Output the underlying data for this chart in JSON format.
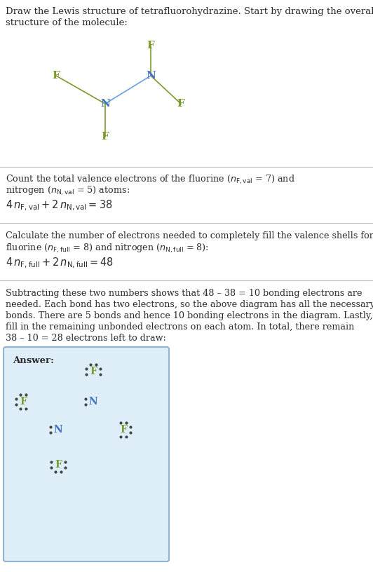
{
  "title_text1": "Draw the Lewis structure of tetrafluorohydrazine. Start by drawing the overall",
  "title_text2": "structure of the molecule:",
  "N_color": "#4472c4",
  "F_color": "#7a9a2e",
  "bond_color_NF": "#7a9a2e",
  "bond_color_NN": "#6ca0dc",
  "answer_bg": "#deeef8",
  "answer_border": "#92b4d0",
  "text_color": "#2b2b2b",
  "divider_color": "#bbbbbb",
  "answer_label": "Answer:"
}
